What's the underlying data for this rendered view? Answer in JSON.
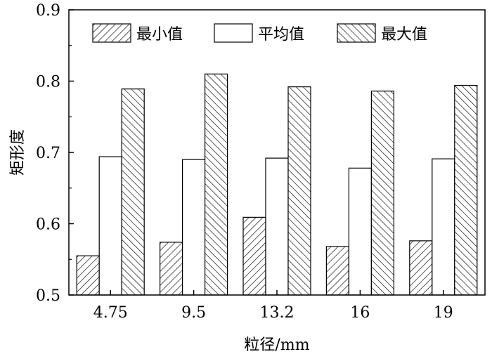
{
  "chart_data": {
    "type": "bar",
    "categories": [
      "4.75",
      "9.5",
      "13.2",
      "16",
      "19"
    ],
    "series": [
      {
        "name": "最小值",
        "values": [
          0.555,
          0.574,
          0.609,
          0.568,
          0.576
        ],
        "pattern": "hatch-right"
      },
      {
        "name": "平均值",
        "values": [
          0.694,
          0.69,
          0.692,
          0.678,
          0.691
        ],
        "pattern": "empty"
      },
      {
        "name": "最大值",
        "values": [
          0.789,
          0.81,
          0.792,
          0.786,
          0.794
        ],
        "pattern": "hatch-left"
      }
    ],
    "xlabel": "粒径/mm",
    "ylabel": "矩形度",
    "ylim": [
      0.5,
      0.9
    ],
    "yticks": [
      "0.5",
      "0.6",
      "0.7",
      "0.8",
      "0.9"
    ],
    "grid": false,
    "legend_position": "top"
  }
}
